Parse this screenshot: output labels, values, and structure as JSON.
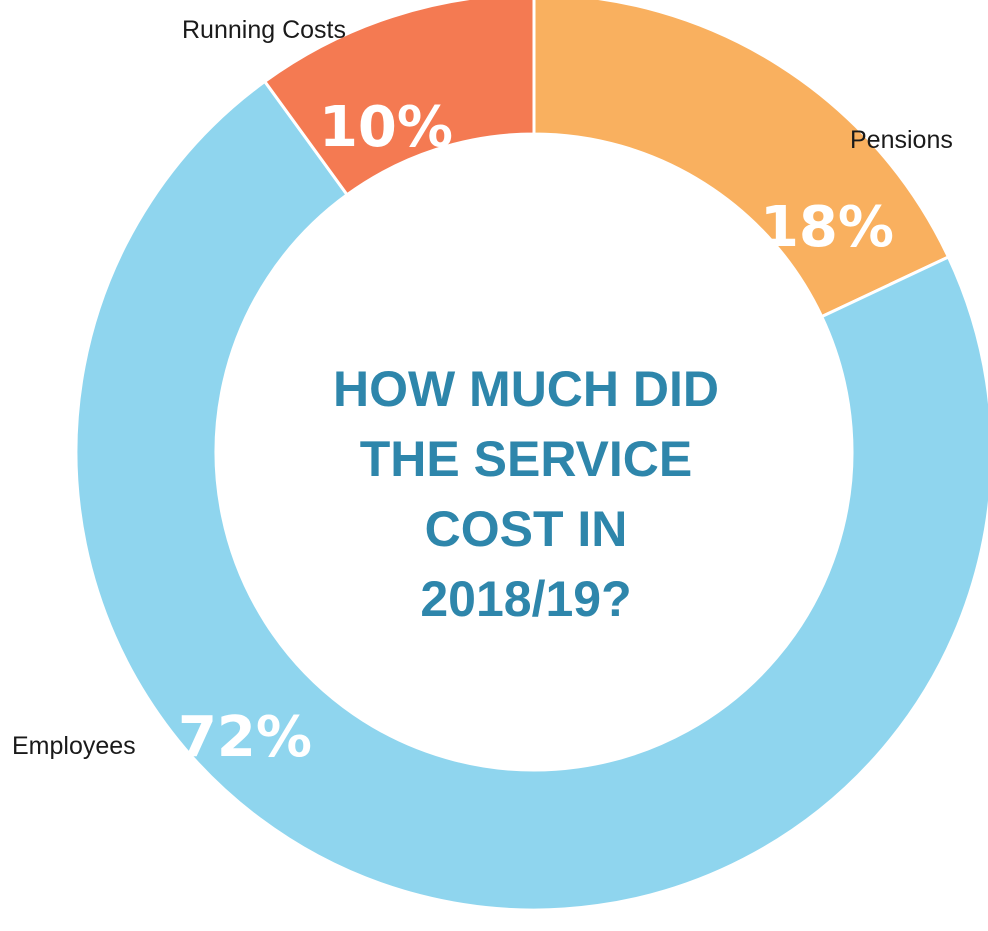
{
  "chart_data": {
    "type": "pie",
    "variant": "donut",
    "title_lines": [
      "HOW MUCH DID",
      "THE SERVICE",
      "COST IN",
      "2018/19?"
    ],
    "start_angle_deg": 0,
    "direction": "clockwise",
    "slices": [
      {
        "name": "Pensions",
        "value": 18,
        "label": "18%",
        "color": "#f9b05f"
      },
      {
        "name": "Employees",
        "value": 72,
        "label": "72%",
        "color": "#8fd5ee"
      },
      {
        "name": "Running Costs",
        "value": 10,
        "label": "10%",
        "color": "#f47a52"
      }
    ],
    "legend": "none",
    "grid": false
  }
}
